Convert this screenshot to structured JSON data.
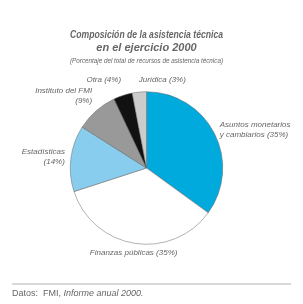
{
  "chart_data": {
    "type": "pie",
    "title": [
      "Composición de la asistencia técnica",
      "en el ejercicio 2000"
    ],
    "subtitle": "(Porcentaje del total de recursos de asistencia técnica)",
    "categories": [
      "Asuntos monetarios\ny cambiarios (35%)",
      "Finanzas públicas (35%)",
      "Estadísticas\n(14%)",
      "Instituto del FMI\n(9%)",
      "Otra (4%)",
      "Jurídica (3%)"
    ],
    "values": [
      35,
      35,
      14,
      9,
      4,
      3
    ],
    "colors": [
      "#00AADD",
      "#FFFFFF",
      "#88CCEE",
      "#999999",
      "#111111",
      "#CCCCCC"
    ],
    "annotations": [
      "Datos:  FMI, ",
      "Informe anual 2000."
    ]
  }
}
